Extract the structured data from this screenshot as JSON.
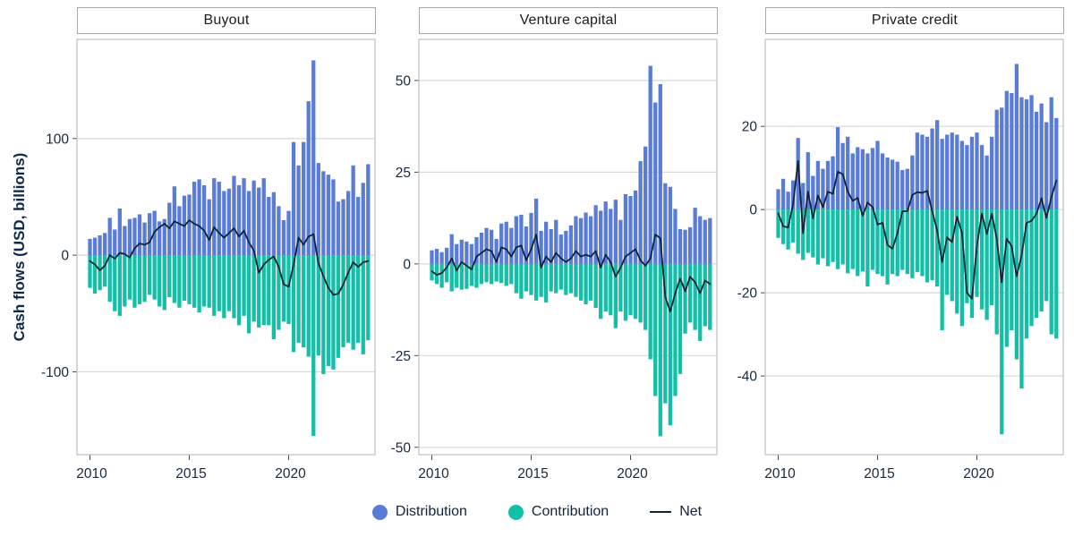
{
  "figure": {
    "y_axis_label": "Cash flows (USD, billions)"
  },
  "colors": {
    "distribution": "#5B7CD6",
    "contribution": "#14BFA7",
    "net": "#0D2438",
    "gridline": "#d9d9d9",
    "panel_border": "#bdbdbd",
    "axis_text": "#16293f",
    "tick": "#4a4a4a"
  },
  "legend": {
    "items": [
      {
        "label": "Distribution",
        "type": "dot",
        "color": "#5B7CD6"
      },
      {
        "label": "Contribution",
        "type": "dot",
        "color": "#14BFA7"
      },
      {
        "label": "Net",
        "type": "line",
        "color": "#0D2438"
      }
    ]
  },
  "chart_data": {
    "type": "bar",
    "x_unit": "quarter",
    "title": "",
    "ylabel": "Cash flows (USD, billions)",
    "grid": true,
    "legend_position": "bottom",
    "categories": [
      "2010Q1",
      "2010Q2",
      "2010Q3",
      "2010Q4",
      "2011Q1",
      "2011Q2",
      "2011Q3",
      "2011Q4",
      "2012Q1",
      "2012Q2",
      "2012Q3",
      "2012Q4",
      "2013Q1",
      "2013Q2",
      "2013Q3",
      "2013Q4",
      "2014Q1",
      "2014Q2",
      "2014Q3",
      "2014Q4",
      "2015Q1",
      "2015Q2",
      "2015Q3",
      "2015Q4",
      "2016Q1",
      "2016Q2",
      "2016Q3",
      "2016Q4",
      "2017Q1",
      "2017Q2",
      "2017Q3",
      "2017Q4",
      "2018Q1",
      "2018Q2",
      "2018Q3",
      "2018Q4",
      "2019Q1",
      "2019Q2",
      "2019Q3",
      "2019Q4",
      "2020Q1",
      "2020Q2",
      "2020Q3",
      "2020Q4",
      "2021Q1",
      "2021Q2",
      "2021Q3",
      "2021Q4",
      "2022Q1",
      "2022Q2",
      "2022Q3",
      "2022Q4",
      "2023Q1",
      "2023Q2",
      "2023Q3",
      "2023Q4",
      "2024Q1"
    ],
    "xticks": [
      {
        "label": "2010",
        "index": 0
      },
      {
        "label": "2015",
        "index": 20
      },
      {
        "label": "2020",
        "index": 40
      }
    ],
    "panels": [
      {
        "id": "buyout",
        "title": "Buyout",
        "ylim": [
          -171,
          185
        ],
        "yticks": [
          100,
          0,
          -100
        ],
        "series": [
          {
            "name": "Distribution",
            "values": [
              14,
              15,
              17,
              19,
              32,
              22,
              40,
              25,
              31,
              32,
              35,
              28,
              36,
              38,
              29,
              31,
              45,
              59,
              42,
              51,
              52,
              63,
              65,
              60,
              48,
              66,
              63,
              55,
              57,
              68,
              60,
              66,
              55,
              64,
              58,
              66,
              50,
              54,
              42,
              30,
              38,
              97,
              77,
              97,
              132,
              167,
              79,
              72,
              69,
              65,
              46,
              48,
              55,
              77,
              50,
              62,
              78
            ]
          },
          {
            "name": "Contribution",
            "values": [
              -28,
              -33,
              -30,
              -27,
              -40,
              -48,
              -52,
              -44,
              -38,
              -45,
              -42,
              -40,
              -34,
              -38,
              -44,
              -47,
              -36,
              -41,
              -45,
              -39,
              -42,
              -45,
              -49,
              -44,
              -45,
              -52,
              -48,
              -54,
              -48,
              -54,
              -60,
              -52,
              -67,
              -57,
              -62,
              -60,
              -60,
              -72,
              -64,
              -57,
              -59,
              -83,
              -75,
              -79,
              -87,
              -155,
              -86,
              -102,
              -95,
              -98,
              -88,
              -79,
              -75,
              -81,
              -75,
              -85,
              -73
            ]
          },
          {
            "name": "Net",
            "values": [
              -5,
              -8,
              -13,
              -9,
              0,
              -3,
              2,
              1,
              -2,
              6,
              10,
              9,
              11,
              20,
              24,
              27,
              23,
              29,
              27,
              25,
              30,
              27,
              25,
              21,
              13,
              24,
              19,
              15,
              19,
              23,
              16,
              21,
              11,
              4,
              -15,
              -8,
              -4,
              -1,
              -10,
              -25,
              -27,
              -8,
              15,
              9,
              16,
              18,
              -7,
              -18,
              -28,
              -34,
              -33,
              -25,
              -15,
              -6,
              -10,
              -6,
              -5
            ]
          }
        ]
      },
      {
        "id": "venture-capital",
        "title": "Venture capital",
        "ylim": [
          -52,
          61.2
        ],
        "yticks": [
          50,
          25,
          0,
          -25,
          -50
        ],
        "series": [
          {
            "name": "Distribution",
            "values": [
              3.7,
              4.1,
              3.2,
              4.4,
              8.1,
              5.4,
              6.6,
              6.1,
              5.4,
              7.3,
              8.5,
              9.8,
              9.3,
              6.8,
              11,
              11.5,
              9.8,
              13,
              13.4,
              10.2,
              13.9,
              17.8,
              9,
              11.5,
              9.5,
              12,
              8,
              9,
              10.5,
              13,
              12.5,
              14,
              13,
              16,
              14.5,
              17,
              15,
              17.5,
              12,
              19,
              18.5,
              20,
              28,
              32,
              54,
              44,
              49,
              22,
              21,
              15,
              9.5,
              9.3,
              10,
              15.3,
              13,
              12,
              12.5
            ]
          },
          {
            "name": "Contribution",
            "values": [
              -4.5,
              -5.5,
              -6.5,
              -5,
              -7.5,
              -6.5,
              -7,
              -6.8,
              -6,
              -6.5,
              -5.5,
              -5,
              -5.5,
              -4.8,
              -5.2,
              -6,
              -5.5,
              -8,
              -9.5,
              -7.5,
              -8.5,
              -10,
              -9,
              -10.5,
              -7.5,
              -8,
              -7,
              -8.5,
              -8,
              -9,
              -10,
              -11,
              -10,
              -12,
              -15,
              -13,
              -14,
              -17.5,
              -13,
              -15.5,
              -14,
              -15,
              -16,
              -18,
              -26,
              -36,
              -47,
              -38,
              -44,
              -36,
              -30,
              -19,
              -16,
              -18,
              -21,
              -17,
              -18
            ]
          },
          {
            "name": "Net",
            "values": [
              -2,
              -3,
              -2.5,
              -1,
              1.5,
              -1.8,
              0.5,
              -0.5,
              -1.5,
              2,
              3,
              4,
              3.5,
              0.5,
              4.5,
              4,
              2,
              4.5,
              5,
              1,
              4,
              8,
              -1,
              2,
              0.5,
              3,
              1.5,
              0.5,
              1.5,
              3.5,
              2,
              2.5,
              2,
              3.5,
              -1,
              2.5,
              0.5,
              -3.5,
              -1,
              2,
              3,
              4,
              1,
              -0.5,
              1.5,
              8,
              7,
              -9,
              -13,
              -8,
              -4,
              -7.5,
              -3.5,
              -5,
              -8,
              -4.5,
              -5.5
            ]
          }
        ]
      },
      {
        "id": "private-credit",
        "title": "Private credit",
        "ylim": [
          -58.9,
          40.9
        ],
        "yticks": [
          20,
          0,
          -20,
          -40
        ],
        "series": [
          {
            "name": "Distribution",
            "values": [
              4.9,
              7.4,
              4.3,
              7,
              17.2,
              6.4,
              13.8,
              8.1,
              11.7,
              9.8,
              11.7,
              12.8,
              19.8,
              16,
              17.5,
              13.5,
              15,
              14.5,
              13.5,
              14.8,
              16.5,
              13.5,
              12.5,
              12,
              11.5,
              9.5,
              9.8,
              13,
              18.5,
              18,
              17.5,
              19.5,
              21.5,
              17,
              18,
              18.5,
              18,
              16.5,
              15.5,
              17.5,
              18.5,
              15.5,
              13,
              17.5,
              24,
              24.5,
              28.5,
              28,
              35,
              27,
              26.5,
              27.5,
              23.5,
              25.5,
              21,
              27,
              22
            ]
          },
          {
            "name": "Contribution",
            "values": [
              -6.8,
              -8.3,
              -9.6,
              -7.9,
              -10.6,
              -12.1,
              -10.4,
              -11.5,
              -13.2,
              -11.7,
              -13.6,
              -12.6,
              -14.3,
              -13.2,
              -15.3,
              -14.3,
              -16,
              -14.9,
              -18.5,
              -14.5,
              -15.5,
              -16,
              -18,
              -15.5,
              -16,
              -14.5,
              -15.5,
              -16.5,
              -15,
              -16,
              -17.5,
              -17,
              -18.5,
              -29,
              -20.5,
              -22,
              -25,
              -28,
              -22.5,
              -26,
              -21,
              -24,
              -26.5,
              -23,
              -30,
              -54,
              -33,
              -29,
              -36,
              -43,
              -31,
              -28,
              -26,
              -24.5,
              -22,
              -30,
              -31
            ]
          },
          {
            "name": "Net",
            "values": [
              -0.9,
              -4,
              -4.3,
              1.3,
              11.7,
              -5.7,
              4.3,
              -2.1,
              3.4,
              0.6,
              4.3,
              3.8,
              9.1,
              8.5,
              4.3,
              2.1,
              2.8,
              -1.5,
              1.7,
              0.6,
              -3.6,
              -3.2,
              -8.5,
              -9.4,
              -5.7,
              -0.4,
              -0.4,
              3.5,
              4.2,
              4,
              4.5,
              -0.4,
              -5,
              -12.6,
              -6.7,
              -7.8,
              -1.7,
              -5.6,
              -20,
              -21.4,
              -8.8,
              -1,
              -5.9,
              -1,
              -7,
              -17.5,
              -7,
              -8.8,
              -16,
              -11,
              -3.2,
              -2.7,
              -1,
              2.7,
              -2,
              3,
              7
            ]
          }
        ]
      }
    ]
  }
}
